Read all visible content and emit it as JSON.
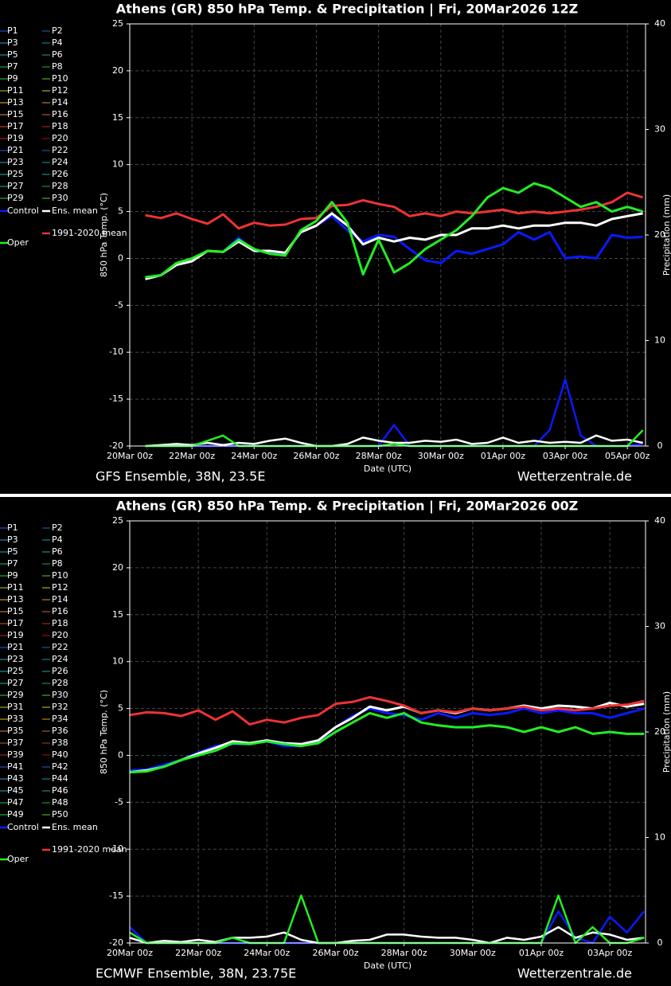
{
  "chart_data": [
    {
      "type": "line",
      "title": "Athens  (GR)  850 hPa Temp. & Precipitation | Fri, 20Mar2026 12Z",
      "source": "GFS Ensemble, 38N, 23.5E",
      "site": "Wetterzentrale.de",
      "ylabel": "850 hPa Temp. (°C)",
      "y2label": "Precipitation (mm)",
      "xlabel": "Date (UTC)",
      "grid": true,
      "xlim": [
        0,
        398
      ],
      "ylim": [
        -20,
        25
      ],
      "y2lim": [
        0,
        40
      ],
      "yticks": [
        -20,
        -15,
        -10,
        -5,
        0,
        5,
        10,
        15,
        20,
        25
      ],
      "y2ticks": [
        0,
        10,
        20,
        30,
        40
      ],
      "xticks": [
        {
          "value": 0,
          "label": "20Mar 00z"
        },
        {
          "value": 48,
          "label": "22Mar 00z"
        },
        {
          "value": 96,
          "label": "24Mar 00z"
        },
        {
          "value": 144,
          "label": "26Mar 00z"
        },
        {
          "value": 192,
          "label": "28Mar 00z"
        },
        {
          "value": 240,
          "label": "30Mar 00z"
        },
        {
          "value": 288,
          "label": "01Apr 00z"
        },
        {
          "value": 336,
          "label": "03Apr 00z"
        },
        {
          "value": 384,
          "label": "05Apr 00z"
        }
      ],
      "x": [
        12,
        24,
        36,
        48,
        60,
        72,
        84,
        96,
        108,
        120,
        132,
        144,
        156,
        168,
        180,
        192,
        204,
        216,
        228,
        240,
        252,
        264,
        276,
        288,
        300,
        312,
        324,
        336,
        348,
        360,
        372,
        384,
        396
      ],
      "members": [
        {
          "name": "P1",
          "color": "#3355dd"
        },
        {
          "name": "P2",
          "color": "#2266bb"
        },
        {
          "name": "P3",
          "color": "#3399cc"
        },
        {
          "name": "P4",
          "color": "#1199aa"
        },
        {
          "name": "P5",
          "color": "#22aaaa"
        },
        {
          "name": "P6",
          "color": "#22aa88"
        },
        {
          "name": "P7",
          "color": "#22bb66"
        },
        {
          "name": "P8",
          "color": "#22aa44"
        },
        {
          "name": "P9",
          "color": "#33cc33"
        },
        {
          "name": "P10",
          "color": "#66cc22"
        },
        {
          "name": "P11",
          "color": "#aacc22"
        },
        {
          "name": "P12",
          "color": "#cccc33"
        },
        {
          "name": "P13",
          "color": "#ddbb22"
        },
        {
          "name": "P14",
          "color": "#dd9922"
        },
        {
          "name": "P15",
          "color": "#dd8844"
        },
        {
          "name": "P16",
          "color": "#cc6633"
        },
        {
          "name": "P17",
          "color": "#cc5522"
        },
        {
          "name": "P18",
          "color": "#bb3322"
        },
        {
          "name": "P19",
          "color": "#bb2222"
        },
        {
          "name": "P20",
          "color": "#aa1111"
        },
        {
          "name": "P21",
          "color": "#3355dd"
        },
        {
          "name": "P22",
          "color": "#2266bb"
        },
        {
          "name": "P23",
          "color": "#3399cc"
        },
        {
          "name": "P24",
          "color": "#1199aa"
        },
        {
          "name": "P25",
          "color": "#22aaaa"
        },
        {
          "name": "P26",
          "color": "#22aa88"
        },
        {
          "name": "P27",
          "color": "#22bb66"
        },
        {
          "name": "P28",
          "color": "#22aa44"
        },
        {
          "name": "P29",
          "color": "#33cc33"
        },
        {
          "name": "P30",
          "color": "#66cc22"
        }
      ],
      "series": [
        {
          "name": "Control",
          "color": "#0a1aff",
          "values": [
            -2,
            -1.8,
            -0.5,
            0,
            0.8,
            0.7,
            2.2,
            0.8,
            0.7,
            0.5,
            2.8,
            3.5,
            4.5,
            3.0,
            1.8,
            2.5,
            2.3,
            1.0,
            -0.2,
            -0.5,
            0.8,
            0.5,
            1.0,
            1.5,
            2.8,
            2.0,
            2.8,
            0,
            0.2,
            0,
            2.5,
            2.2,
            2.3
          ],
          "precip": [
            0,
            0,
            0,
            0,
            0,
            0,
            0,
            0,
            0,
            0,
            0,
            0,
            0,
            0,
            0,
            0,
            2.0,
            0,
            0,
            0,
            0,
            0,
            0,
            0,
            0,
            0,
            1.5,
            6.3,
            1.0,
            0,
            0,
            0,
            0.2
          ]
        },
        {
          "name": "Ens. mean",
          "color": "#ffffff",
          "values": [
            -2.2,
            -1.8,
            -0.7,
            -0.3,
            0.8,
            0.7,
            1.8,
            0.8,
            0.8,
            0.6,
            2.8,
            3.5,
            4.8,
            3.5,
            1.5,
            2.2,
            1.8,
            2.2,
            2.0,
            2.5,
            2.5,
            3.2,
            3.2,
            3.5,
            3.2,
            3.5,
            3.5,
            3.8,
            3.8,
            3.5,
            4.2,
            4.5,
            4.8
          ],
          "precip": [
            0,
            0.1,
            0.2,
            0.1,
            0.3,
            0.1,
            0.3,
            0.2,
            0.5,
            0.7,
            0.3,
            0,
            0,
            0.2,
            0.8,
            0.5,
            0.3,
            0.3,
            0.5,
            0.4,
            0.6,
            0.2,
            0.3,
            0.8,
            0.3,
            0.5,
            0.3,
            0.4,
            0.3,
            1.0,
            0.5,
            0.6,
            0.3
          ]
        },
        {
          "name": "1991-2020 mean",
          "color": "#ee3333",
          "values": [
            4.6,
            4.3,
            4.8,
            4.2,
            3.7,
            4.7,
            3.2,
            3.8,
            3.5,
            3.6,
            4.2,
            4.3,
            5.6,
            5.7,
            6.2,
            5.8,
            5.5,
            4.5,
            4.8,
            4.5,
            5.0,
            4.8,
            5.0,
            5.2,
            4.8,
            5.0,
            4.8,
            5.0,
            5.2,
            5.5,
            6.0,
            7.0,
            6.5
          ]
        },
        {
          "name": "Oper",
          "color": "#22ee22",
          "values": [
            -2,
            -1.8,
            -0.5,
            0,
            0.8,
            0.7,
            2.0,
            1.0,
            0.5,
            0.3,
            3.0,
            4.0,
            6.0,
            3.8,
            -1.7,
            2.0,
            -1.5,
            -0.5,
            1.0,
            2.0,
            3.0,
            4.5,
            6.5,
            7.5,
            7.0,
            8.0,
            7.5,
            6.5,
            5.5,
            6.0,
            5.0,
            5.5,
            5.0
          ],
          "precip": [
            0,
            0,
            0,
            0,
            0.5,
            1.0,
            0,
            0,
            0,
            0,
            0,
            0,
            0,
            0,
            0,
            0,
            0.2,
            0,
            0,
            0,
            0,
            0,
            0,
            0,
            0,
            0,
            0,
            0,
            0,
            0,
            0,
            0,
            1.5
          ]
        }
      ]
    },
    {
      "type": "line",
      "title": "Athens  (GR)  850 hPa Temp. & Precipitation | Fri, 20Mar2026 00Z",
      "source": "ECMWF Ensemble, 38N, 23.75E",
      "site": "Wetterzentrale.de",
      "ylabel": "850 hPa Temp. (°C)",
      "y2label": "Precipitation (mm)",
      "xlabel": "Date (UTC)",
      "grid": true,
      "xlim": [
        0,
        361
      ],
      "ylim": [
        -20,
        25
      ],
      "y2lim": [
        0,
        40
      ],
      "yticks": [
        -20,
        -15,
        -10,
        -5,
        0,
        5,
        10,
        15,
        20,
        25
      ],
      "y2ticks": [
        0,
        10,
        20,
        30,
        40
      ],
      "xticks": [
        {
          "value": 0,
          "label": "20Mar 00z"
        },
        {
          "value": 48,
          "label": "22Mar 00z"
        },
        {
          "value": 96,
          "label": "24Mar 00z"
        },
        {
          "value": 144,
          "label": "26Mar 00z"
        },
        {
          "value": 192,
          "label": "28Mar 00z"
        },
        {
          "value": 240,
          "label": "30Mar 00z"
        },
        {
          "value": 288,
          "label": "01Apr 00z"
        },
        {
          "value": 336,
          "label": "03Apr 00z"
        }
      ],
      "x": [
        0,
        12,
        24,
        36,
        48,
        60,
        72,
        84,
        96,
        108,
        120,
        132,
        144,
        156,
        168,
        180,
        192,
        204,
        216,
        228,
        240,
        252,
        264,
        276,
        288,
        300,
        312,
        324,
        336,
        348,
        360
      ],
      "members": [
        {
          "name": "P1",
          "color": "#3355dd"
        },
        {
          "name": "P2",
          "color": "#2266bb"
        },
        {
          "name": "P3",
          "color": "#3399cc"
        },
        {
          "name": "P4",
          "color": "#1199aa"
        },
        {
          "name": "P5",
          "color": "#22aaaa"
        },
        {
          "name": "P6",
          "color": "#22aa88"
        },
        {
          "name": "P7",
          "color": "#22bb66"
        },
        {
          "name": "P8",
          "color": "#22aa44"
        },
        {
          "name": "P9",
          "color": "#33cc33"
        },
        {
          "name": "P10",
          "color": "#66cc22"
        },
        {
          "name": "P11",
          "color": "#aacc22"
        },
        {
          "name": "P12",
          "color": "#cccc33"
        },
        {
          "name": "P13",
          "color": "#ddbb22"
        },
        {
          "name": "P14",
          "color": "#dd9922"
        },
        {
          "name": "P15",
          "color": "#dd8844"
        },
        {
          "name": "P16",
          "color": "#cc6633"
        },
        {
          "name": "P17",
          "color": "#cc5522"
        },
        {
          "name": "P18",
          "color": "#bb3322"
        },
        {
          "name": "P19",
          "color": "#bb2222"
        },
        {
          "name": "P20",
          "color": "#aa1111"
        },
        {
          "name": "P21",
          "color": "#3355dd"
        },
        {
          "name": "P22",
          "color": "#2266bb"
        },
        {
          "name": "P23",
          "color": "#3399cc"
        },
        {
          "name": "P24",
          "color": "#1199aa"
        },
        {
          "name": "P25",
          "color": "#22aaaa"
        },
        {
          "name": "P26",
          "color": "#22aa88"
        },
        {
          "name": "P27",
          "color": "#22bb66"
        },
        {
          "name": "P28",
          "color": "#22aa44"
        },
        {
          "name": "P29",
          "color": "#33cc33"
        },
        {
          "name": "P30",
          "color": "#66cc22"
        },
        {
          "name": "P31",
          "color": "#aacc22"
        },
        {
          "name": "P32",
          "color": "#cccc33"
        },
        {
          "name": "P33",
          "color": "#ddbb22"
        },
        {
          "name": "P34",
          "color": "#dd9922"
        },
        {
          "name": "P35",
          "color": "#dd8844"
        },
        {
          "name": "P36",
          "color": "#cc6633"
        },
        {
          "name": "P37",
          "color": "#cc5522"
        },
        {
          "name": "P38",
          "color": "#bb3322"
        },
        {
          "name": "P39",
          "color": "#bb2222"
        },
        {
          "name": "P40",
          "color": "#aa1111"
        },
        {
          "name": "P41",
          "color": "#3355dd"
        },
        {
          "name": "P42",
          "color": "#2266bb"
        },
        {
          "name": "P43",
          "color": "#3399cc"
        },
        {
          "name": "P44",
          "color": "#1199aa"
        },
        {
          "name": "P45",
          "color": "#22aaaa"
        },
        {
          "name": "P46",
          "color": "#22aa88"
        },
        {
          "name": "P47",
          "color": "#22bb66"
        },
        {
          "name": "P48",
          "color": "#22aa44"
        },
        {
          "name": "P49",
          "color": "#33cc33"
        },
        {
          "name": "P50",
          "color": "#66cc22"
        }
      ],
      "series": [
        {
          "name": "Control",
          "color": "#0a1aff",
          "values": [
            -1.6,
            -1.5,
            -1.0,
            -0.5,
            0.3,
            1.0,
            1.2,
            1.2,
            1.5,
            1.0,
            1.0,
            1.5,
            3.0,
            4.2,
            5.0,
            4.5,
            4.3,
            3.8,
            4.5,
            4.0,
            4.5,
            4.3,
            4.5,
            5.0,
            4.5,
            4.8,
            4.5,
            4.5,
            4.0,
            4.5,
            5.0
          ],
          "precip": [
            1.5,
            0,
            0,
            0,
            0,
            0,
            0,
            0,
            0,
            0,
            0,
            0,
            0,
            0,
            0,
            0,
            0,
            0,
            0,
            0,
            0,
            0,
            0,
            0,
            0,
            3.0,
            0.5,
            0,
            2.5,
            1.0,
            3.0
          ]
        },
        {
          "name": "Ens. mean",
          "color": "#ffffff",
          "values": [
            -1.8,
            -1.6,
            -1.2,
            -0.5,
            0.2,
            0.8,
            1.5,
            1.3,
            1.6,
            1.3,
            1.2,
            1.6,
            3.0,
            4.0,
            5.2,
            4.8,
            5.2,
            4.5,
            4.8,
            4.5,
            5.0,
            4.8,
            5.0,
            5.3,
            5.0,
            5.3,
            5.2,
            5.0,
            5.6,
            5.2,
            5.5
          ],
          "precip": [
            0.5,
            0,
            0.2,
            0.1,
            0.3,
            0.1,
            0.5,
            0.5,
            0.6,
            1.0,
            0.3,
            0,
            0,
            0.2,
            0.3,
            0.8,
            0.8,
            0.6,
            0.5,
            0.5,
            0.3,
            0,
            0.5,
            0.3,
            0.6,
            1.5,
            0.5,
            1.0,
            0.8,
            0.3,
            0.5
          ]
        },
        {
          "name": "1991-2020 mean",
          "color": "#ee3333",
          "values": [
            4.3,
            4.6,
            4.5,
            4.2,
            4.8,
            3.8,
            4.7,
            3.3,
            3.8,
            3.5,
            4.0,
            4.3,
            5.5,
            5.7,
            6.2,
            5.8,
            5.3,
            4.5,
            4.8,
            4.6,
            5.0,
            4.8,
            5.0,
            5.2,
            4.8,
            5.0,
            4.8,
            5.0,
            5.3,
            5.4,
            5.8
          ]
        },
        {
          "name": "Oper",
          "color": "#22ee22",
          "values": [
            -1.8,
            -1.7,
            -1.2,
            -0.5,
            0,
            0.5,
            1.3,
            1.2,
            1.5,
            1.2,
            1.0,
            1.3,
            2.5,
            3.5,
            4.5,
            4.0,
            4.5,
            3.5,
            3.2,
            3.0,
            3.0,
            3.2,
            3.0,
            2.5,
            3.0,
            2.5,
            3.0,
            2.3,
            2.5,
            2.3,
            2.3
          ],
          "precip": [
            1.0,
            0,
            0,
            0,
            0,
            0,
            0.5,
            0,
            0,
            0,
            4.5,
            0,
            0,
            0,
            0,
            0,
            0,
            0,
            0,
            0,
            0,
            0,
            0,
            0,
            0,
            4.5,
            0,
            1.5,
            0,
            0,
            0.5
          ]
        }
      ]
    }
  ]
}
